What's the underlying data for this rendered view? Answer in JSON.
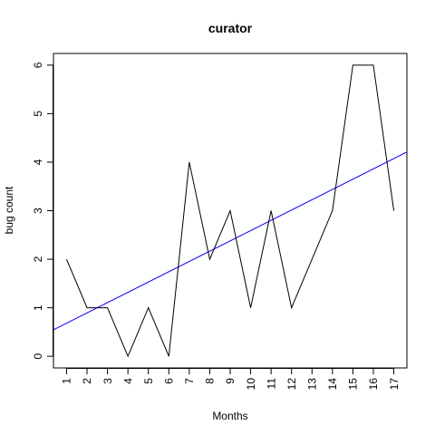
{
  "chart_data": {
    "type": "line",
    "title": "curator",
    "xlabel": "Months",
    "ylabel": "bug count",
    "x": [
      1,
      2,
      3,
      4,
      5,
      6,
      7,
      8,
      9,
      10,
      11,
      12,
      13,
      14,
      15,
      16,
      17
    ],
    "x_tick_labels": [
      "1",
      "2",
      "3",
      "4",
      "5",
      "6",
      "7",
      "8",
      "9",
      "10",
      "11",
      "12",
      "13",
      "14",
      "15",
      "16",
      "17"
    ],
    "y_tick_labels": [
      "0",
      "1",
      "2",
      "3",
      "4",
      "5",
      "6"
    ],
    "xlim": [
      0.36,
      17.64
    ],
    "ylim": [
      -0.24,
      6.24
    ],
    "grid": false,
    "legend": "none",
    "series": [
      {
        "values": [
          2,
          1,
          1,
          0,
          1,
          0,
          4,
          2,
          3,
          1,
          3,
          1,
          2,
          3,
          6,
          6,
          3
        ],
        "color": "#000000"
      }
    ],
    "trend_line": {
      "intercept": 0.47,
      "slope": 0.212,
      "color": "#0000ff"
    }
  }
}
